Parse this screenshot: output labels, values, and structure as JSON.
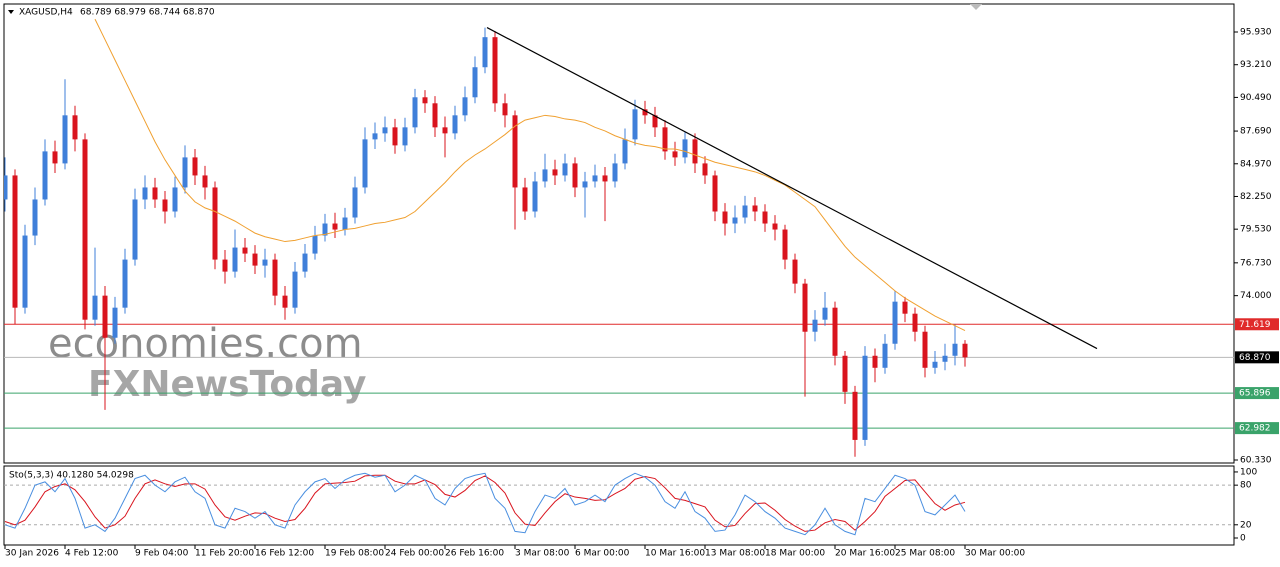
{
  "chart_data": {
    "type": "candlestick",
    "symbol": "XAGUSD,H4",
    "ohlc_text": "68.789 68.979 68.744 68.870",
    "watermark": [
      "economies.com",
      "FXNewsToday"
    ],
    "up_color": "#3f7fd9",
    "down_color": "#d9141e",
    "ma_color": "#f0a030",
    "trend_color": "#000000",
    "categories": [
      "30 Jan 2026",
      null,
      null,
      null,
      null,
      null,
      "4 Feb 12:00",
      null,
      null,
      null,
      null,
      null,
      null,
      "9 Feb 04:00",
      null,
      null,
      null,
      null,
      null,
      "11 Feb 20:00",
      null,
      null,
      null,
      null,
      null,
      "16 Feb 12:00",
      null,
      null,
      null,
      null,
      null,
      null,
      "19 Feb 08:00",
      null,
      null,
      null,
      null,
      null,
      "24 Feb 00:00",
      null,
      null,
      null,
      null,
      null,
      "26 Feb 16:00",
      null,
      null,
      null,
      null,
      null,
      null,
      "3 Mar 08:00",
      null,
      null,
      null,
      null,
      null,
      "6 Mar 00:00",
      null,
      null,
      null,
      null,
      null,
      null,
      "10 Mar 16:00",
      null,
      null,
      null,
      null,
      null,
      "13 Mar 08:00",
      null,
      null,
      null,
      null,
      null,
      "18 Mar 00:00",
      null,
      null,
      null,
      null,
      null,
      null,
      "20 Mar 16:00",
      null,
      null,
      null,
      null,
      null,
      "25 Mar 08:00",
      null,
      null,
      null,
      null,
      null,
      null,
      "30 Mar 00:00"
    ],
    "open": [
      82,
      84,
      73,
      79,
      82,
      86,
      85,
      89,
      87,
      72,
      74,
      70.5,
      73,
      77,
      82,
      83,
      82,
      81,
      83,
      85.5,
      84,
      83,
      77,
      76,
      78,
      77.5,
      76.5,
      77,
      74,
      73,
      76,
      77.5,
      79,
      80,
      79.5,
      80.5,
      83,
      87,
      87.5,
      88,
      86.5,
      88,
      90.5,
      90,
      88,
      87.5,
      89,
      90.5,
      93,
      95.5,
      90,
      89,
      83,
      81,
      83.5,
      84.5,
      84,
      85,
      83,
      83.5,
      84,
      83.5,
      85,
      87,
      89.5,
      89,
      88,
      86,
      85.5,
      87,
      85,
      84,
      81,
      80,
      80.5,
      81.5,
      81,
      80,
      79.5,
      77,
      75,
      71,
      72,
      73,
      69,
      66,
      62,
      69,
      68,
      70,
      73.5,
      72.5,
      71,
      68,
      68.5,
      69,
      70
    ],
    "high": [
      85.5,
      84.5,
      79.9,
      83,
      87,
      86.9,
      92,
      89.8,
      87.5,
      78,
      74.8,
      73.9,
      77.9,
      82.9,
      84,
      83.8,
      82.7,
      83.9,
      86.5,
      86.2,
      84.8,
      83.5,
      77.8,
      79.5,
      78.8,
      78.2,
      77.9,
      77.5,
      74.8,
      76.8,
      78.3,
      79.8,
      80.8,
      80.9,
      81.3,
      83.9,
      88,
      88.4,
      88.9,
      88.7,
      88.8,
      91.2,
      91.1,
      90.6,
      88.9,
      89.8,
      91.4,
      93.9,
      96.3,
      96,
      90.8,
      89.4,
      83.8,
      84.3,
      85.8,
      85.3,
      85.8,
      85.5,
      84.3,
      84.9,
      84.7,
      85.8,
      87.9,
      90.3,
      90.2,
      89.7,
      88.6,
      86.8,
      87.6,
      87.5,
      85.6,
      84.4,
      81.7,
      81.5,
      82.3,
      82.2,
      81.6,
      80.7,
      79.9,
      77.5,
      75.4,
      72.8,
      74.3,
      73.5,
      69.4,
      66.5,
      69.8,
      69.6,
      70.8,
      74.4,
      73.9,
      73,
      71.5,
      69.4,
      70,
      71.6,
      70.3
    ],
    "low": [
      81,
      71.6,
      72.5,
      78.2,
      81.5,
      84.2,
      84.5,
      86,
      71.2,
      71.5,
      64.5,
      70,
      72.5,
      76.5,
      81.2,
      81.3,
      80,
      80.5,
      82.5,
      83.2,
      82,
      76.2,
      75,
      75.5,
      76.8,
      75.8,
      75.5,
      73.2,
      72,
      72.5,
      75.5,
      77,
      78.5,
      78.8,
      79,
      80,
      82.5,
      86.2,
      86.8,
      85.8,
      86,
      87.5,
      89.2,
      87.2,
      85.5,
      87,
      88.5,
      90,
      92.5,
      89.3,
      88,
      79.5,
      80.3,
      80.5,
      83,
      83.2,
      83.5,
      82.2,
      80.5,
      83,
      80.2,
      83,
      84.5,
      86.5,
      88.3,
      87.2,
      85.3,
      84.8,
      85,
      84.2,
      83.3,
      80.2,
      79,
      79.2,
      80,
      80.2,
      79.3,
      78.6,
      76.2,
      74.2,
      65.6,
      70.2,
      71.5,
      68.2,
      65,
      60.6,
      61.5,
      66.8,
      67.5,
      69.5,
      71.8,
      70.2,
      67.2,
      67.5,
      67.8,
      68.2,
      68.1
    ],
    "close": [
      84,
      73,
      79,
      82,
      86,
      85,
      89,
      87,
      72,
      74,
      70.5,
      73,
      77,
      82,
      83,
      82,
      81,
      83,
      85.5,
      84,
      83,
      77,
      76,
      78,
      77.5,
      76.5,
      77,
      74,
      73,
      76,
      77.5,
      79,
      80,
      79.5,
      80.5,
      83,
      87,
      87.5,
      88,
      86.5,
      88,
      90.5,
      90,
      88,
      87.5,
      89,
      90.5,
      93,
      95.5,
      90,
      89,
      83,
      81,
      83.5,
      84.5,
      84,
      85,
      83,
      83.5,
      84,
      83.5,
      85,
      87,
      89.5,
      89,
      88,
      86,
      85.5,
      87,
      85,
      84,
      81,
      80,
      80.5,
      81.5,
      81,
      80,
      79.5,
      77,
      75,
      71,
      72,
      73,
      69,
      66,
      62,
      69,
      68,
      70,
      73.5,
      72.5,
      71,
      68,
      68.5,
      69,
      70,
      68.87
    ],
    "ma": [
      null,
      null,
      null,
      null,
      null,
      null,
      null,
      null,
      null,
      97,
      95.3,
      93.6,
      91.9,
      90.2,
      88.5,
      86.8,
      85.3,
      84,
      82.7,
      81.8,
      81.3,
      81,
      80.6,
      80.2,
      79.7,
      79.2,
      78.9,
      78.7,
      78.5,
      78.6,
      78.8,
      79,
      79.1,
      79.3,
      79.5,
      79.6,
      79.8,
      80,
      80.1,
      80.3,
      80.5,
      81,
      81.8,
      82.6,
      83.4,
      84.3,
      85.1,
      85.7,
      86.2,
      86.8,
      87.4,
      88.1,
      88.6,
      88.8,
      89,
      88.9,
      88.7,
      88.6,
      88.4,
      88,
      87.7,
      87.3,
      87,
      86.7,
      86.5,
      86.4,
      86.2,
      86.2,
      86,
      85.7,
      85.4,
      85.1,
      84.9,
      84.7,
      84.5,
      84.3,
      84,
      83.6,
      83.2,
      82.6,
      82,
      81.4,
      80.3,
      79.2,
      78.1,
      77.2,
      76.5,
      75.8,
      75.1,
      74.4,
      73.8,
      73.3,
      72.8,
      72.3,
      71.9,
      71.5,
      71.1
    ],
    "trendline": {
      "x": [
        48.2,
        109.2
      ],
      "y": [
        96.3,
        69.6
      ]
    },
    "levels": [
      {
        "value": 71.619,
        "label": "71.619",
        "color": "#e02a2a",
        "box": "#e02a2a"
      },
      {
        "value": 68.87,
        "label": "68.870",
        "color": "#b8b8b8",
        "box": "#000000"
      },
      {
        "value": 65.896,
        "label": "65.896",
        "color": "#3aa36a",
        "box": "#3aa36a"
      },
      {
        "value": 62.982,
        "label": "62.982",
        "color": "#3aa36a",
        "box": "#3aa36a"
      }
    ],
    "ylim": [
      60.08,
      98.26
    ],
    "yticks": [
      {
        "value": 95.93,
        "label": "95.930"
      },
      {
        "value": 93.21,
        "label": "93.210"
      },
      {
        "value": 90.49,
        "label": "90.490"
      },
      {
        "value": 87.69,
        "label": "87.690"
      },
      {
        "value": 84.97,
        "label": "84.970"
      },
      {
        "value": 82.25,
        "label": "82.250"
      },
      {
        "value": 79.53,
        "label": "79.530"
      },
      {
        "value": 76.73,
        "label": "76.730"
      },
      {
        "value": 74,
        "label": "74.000"
      },
      {
        "value": 60.33,
        "label": "60.330"
      }
    ],
    "stoch": {
      "label": "Sto(5,3,3) 40.1280 54.0298",
      "k_color": "#4a8fe0",
      "d_color": "#d9141e",
      "k": [
        20,
        15,
        45,
        80,
        85,
        70,
        90,
        60,
        15,
        20,
        10,
        30,
        60,
        90,
        95,
        80,
        70,
        85,
        92,
        70,
        60,
        20,
        15,
        45,
        40,
        30,
        40,
        20,
        15,
        50,
        70,
        85,
        90,
        75,
        88,
        95,
        98,
        92,
        95,
        70,
        80,
        95,
        88,
        60,
        50,
        75,
        90,
        95,
        98,
        60,
        45,
        10,
        8,
        40,
        65,
        60,
        75,
        50,
        55,
        65,
        55,
        80,
        90,
        98,
        92,
        80,
        55,
        45,
        70,
        40,
        30,
        10,
        12,
        35,
        65,
        55,
        40,
        30,
        15,
        10,
        5,
        20,
        45,
        20,
        10,
        5,
        60,
        55,
        75,
        95,
        90,
        80,
        40,
        35,
        50,
        65,
        40.128
      ],
      "d": [
        25,
        20,
        27,
        47,
        70,
        78,
        82,
        73,
        55,
        32,
        15,
        20,
        33,
        60,
        82,
        88,
        82,
        78,
        82,
        82,
        74,
        50,
        32,
        27,
        33,
        38,
        37,
        30,
        25,
        28,
        45,
        68,
        82,
        83,
        84,
        86,
        94,
        95,
        95,
        86,
        82,
        82,
        88,
        81,
        66,
        62,
        72,
        87,
        94,
        84,
        68,
        38,
        21,
        19,
        38,
        55,
        67,
        62,
        60,
        57,
        58,
        67,
        75,
        89,
        93,
        90,
        76,
        60,
        57,
        52,
        47,
        27,
        17,
        19,
        37,
        52,
        53,
        42,
        28,
        18,
        10,
        12,
        23,
        28,
        25,
        12,
        25,
        40,
        63,
        75,
        87,
        88,
        70,
        52,
        42,
        50,
        54.0298
      ],
      "ylim": [
        -10.6,
        109
      ],
      "yticks": [
        0,
        20,
        80,
        100
      ],
      "levels": [
        20,
        80
      ]
    }
  }
}
